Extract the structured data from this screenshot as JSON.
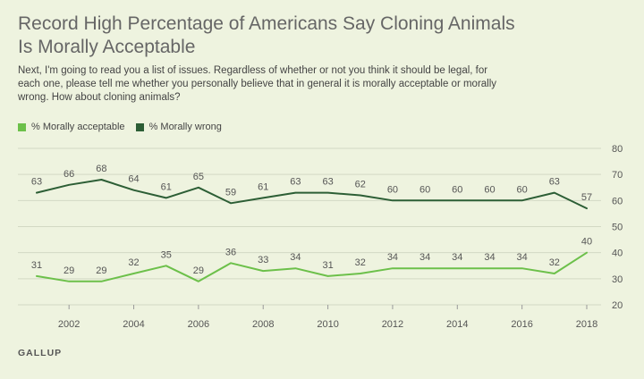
{
  "header": {
    "title": "Record High Percentage of Americans Say Cloning Animals Is Morally Acceptable",
    "subtitle": "Next, I'm going to read you a list of issues. Regardless of whether or not you think it should be legal, for each one, please tell me whether you personally believe that in general it is morally acceptable or morally wrong. How about cloning animals?"
  },
  "footer": {
    "source": "GALLUP"
  },
  "chart_data": {
    "type": "line",
    "x": [
      2001,
      2002,
      2003,
      2004,
      2005,
      2006,
      2007,
      2008,
      2009,
      2010,
      2011,
      2012,
      2013,
      2014,
      2015,
      2016,
      2017,
      2018
    ],
    "x_ticks": [
      2002,
      2004,
      2006,
      2008,
      2010,
      2012,
      2014,
      2016,
      2018
    ],
    "y_ticks": [
      20,
      30,
      40,
      50,
      60,
      70,
      80
    ],
    "ylim": [
      20,
      80
    ],
    "grid": true,
    "legend_position": "top-left",
    "series": [
      {
        "name": "% Morally acceptable",
        "color": "#6cc04a",
        "values": [
          31,
          29,
          29,
          32,
          35,
          29,
          36,
          33,
          34,
          31,
          32,
          34,
          34,
          34,
          34,
          34,
          32,
          40
        ]
      },
      {
        "name": "% Morally wrong",
        "color": "#2c5e35",
        "values": [
          63,
          66,
          68,
          64,
          61,
          65,
          59,
          61,
          63,
          63,
          62,
          60,
          60,
          60,
          60,
          60,
          63,
          57
        ]
      }
    ]
  }
}
